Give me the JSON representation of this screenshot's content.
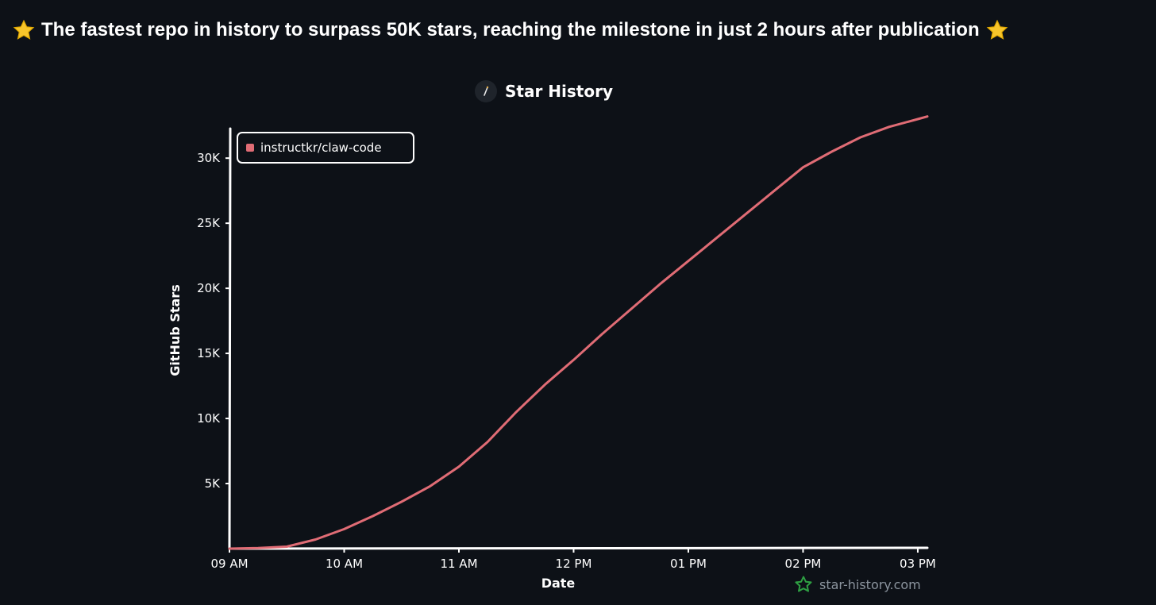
{
  "headline": {
    "text": "The fastest repo in history to surpass 50K stars, reaching the milestone in just 2 hours after publication",
    "icon_left": "star-emoji-icon",
    "icon_right": "star-emoji-icon"
  },
  "chart_title": {
    "text": "Star History",
    "icon": "star-history-logo-icon"
  },
  "watermark": {
    "text": "star-history.com",
    "icon": "star-outline-icon"
  },
  "colors": {
    "background": "#0d1117",
    "series": "#e06c75",
    "axis": "#ffffff",
    "watermark": "#8b949e",
    "watermark_icon": "#2ea043"
  },
  "chart_data": {
    "type": "line",
    "xlabel": "Date",
    "ylabel": "GitHub Stars",
    "x_ticks": [
      "09 AM",
      "10 AM",
      "11 AM",
      "12 PM",
      "01 PM",
      "02 PM",
      "03 PM"
    ],
    "y_ticks": [
      "5K",
      "10K",
      "15K",
      "20K",
      "25K",
      "30K"
    ],
    "xlim": [
      "09:00",
      "15:05"
    ],
    "ylim": [
      0,
      33000
    ],
    "grid": false,
    "legend_position": "top-left",
    "series": [
      {
        "name": "instructkr/claw-code",
        "color": "#e06c75",
        "x": [
          "09:00",
          "09:15",
          "09:30",
          "09:45",
          "10:00",
          "10:15",
          "10:30",
          "10:45",
          "11:00",
          "11:15",
          "11:30",
          "11:45",
          "12:00",
          "12:15",
          "12:30",
          "12:45",
          "13:00",
          "13:15",
          "13:30",
          "13:45",
          "14:00",
          "14:15",
          "14:30",
          "14:45",
          "15:00",
          "15:05"
        ],
        "y": [
          0,
          50,
          150,
          700,
          1500,
          2500,
          3600,
          4800,
          6300,
          8200,
          10500,
          12600,
          14500,
          16500,
          18400,
          20300,
          22100,
          23900,
          25700,
          27500,
          29300,
          30500,
          31600,
          32400,
          33000,
          33200
        ]
      }
    ]
  }
}
